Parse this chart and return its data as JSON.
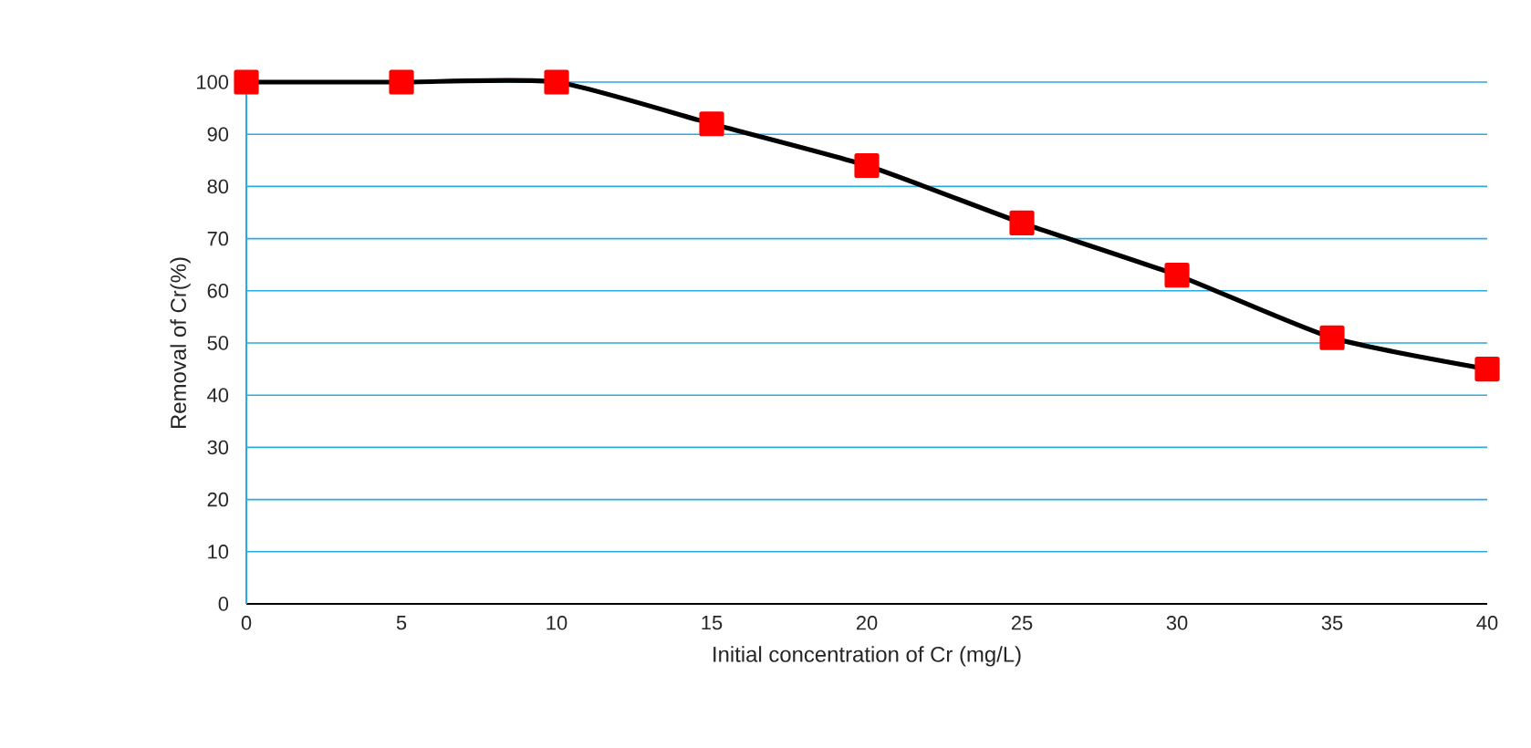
{
  "chart_data": {
    "type": "line",
    "xlabel": "Initial concentration of Cr (mg/L)",
    "ylabel": "Removal of Cr(%)",
    "x": [
      0,
      5,
      10,
      15,
      20,
      25,
      30,
      35,
      40
    ],
    "series": [
      {
        "color": "#ff0000",
        "values": [
          100,
          100,
          100,
          92,
          84,
          73,
          63,
          51,
          45
        ]
      }
    ],
    "xlim": [
      0,
      40
    ],
    "xticks": [
      0,
      5,
      10,
      15,
      20,
      25,
      30,
      35,
      40
    ],
    "ylim": [
      0,
      100
    ],
    "yticks": [
      0,
      10,
      20,
      30,
      40,
      50,
      60,
      70,
      80,
      90,
      100
    ],
    "grid": "y",
    "marker": "square",
    "line_style": "solid"
  }
}
